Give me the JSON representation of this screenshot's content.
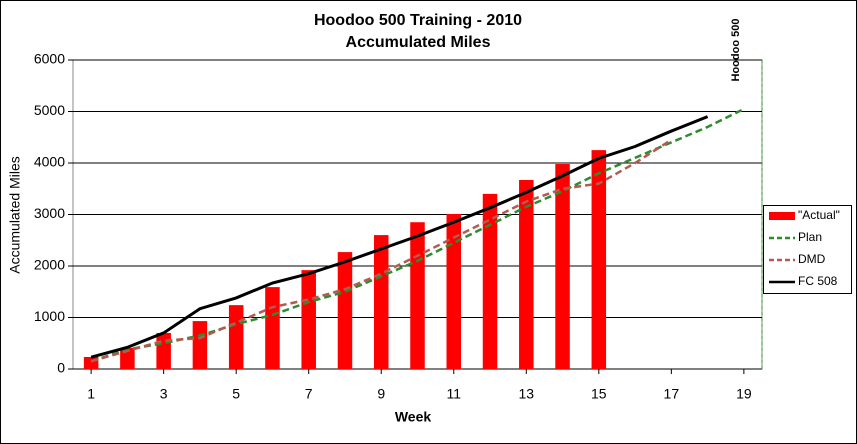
{
  "chart_data": {
    "type": "bar",
    "title": "Hoodoo 500 Training - 2010",
    "subtitle": "Accumulated Miles",
    "x_label": "Week",
    "y_label": "Accumulated Miles",
    "x": [
      1,
      2,
      3,
      4,
      5,
      6,
      7,
      8,
      9,
      10,
      11,
      12,
      13,
      14,
      15,
      16,
      17,
      18,
      19
    ],
    "xlim": [
      0.5,
      19.5
    ],
    "xticks": [
      1,
      3,
      5,
      7,
      9,
      11,
      13,
      15,
      17,
      19
    ],
    "ylim": [
      0,
      6000
    ],
    "yticks": [
      0,
      1000,
      2000,
      3000,
      4000,
      5000,
      6000
    ],
    "grid": true,
    "legend": "right",
    "annotation": {
      "text": "Hoodoo 500",
      "x": 19.5
    },
    "series": [
      {
        "name": "\"Actual\"",
        "type": "bar",
        "color": "#ff0000",
        "values": [
          233,
          410,
          700,
          930,
          1240,
          1590,
          1920,
          2270,
          2600,
          2850,
          3010,
          3400,
          3670,
          3980,
          4250,
          null,
          null,
          null,
          null
        ]
      },
      {
        "name": "Plan",
        "type": "line",
        "dashed": true,
        "color": "#2e8b2e",
        "values": [
          150,
          380,
          500,
          650,
          870,
          1050,
          1300,
          1500,
          1800,
          2100,
          2450,
          2800,
          3150,
          3450,
          3800,
          4100,
          4400,
          4700,
          5050
        ]
      },
      {
        "name": "DMD",
        "type": "line",
        "dashed": true,
        "color": "#b35a52",
        "values": [
          150,
          350,
          550,
          600,
          900,
          1200,
          1350,
          1550,
          1850,
          2200,
          2550,
          2900,
          3250,
          3500,
          3600,
          4000,
          4450,
          null,
          null
        ]
      },
      {
        "name": "FC 508",
        "type": "line",
        "dashed": false,
        "color": "#000000",
        "values": [
          230,
          420,
          700,
          1170,
          1380,
          1670,
          1850,
          2080,
          2330,
          2580,
          2850,
          3130,
          3430,
          3750,
          4090,
          4320,
          4620,
          4900,
          null
        ]
      }
    ]
  }
}
